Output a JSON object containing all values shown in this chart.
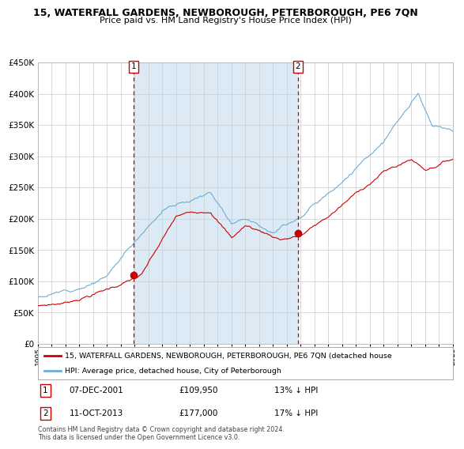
{
  "title": "15, WATERFALL GARDENS, NEWBOROUGH, PETERBOROUGH, PE6 7QN",
  "subtitle": "Price paid vs. HM Land Registry's House Price Index (HPI)",
  "legend_line1": "15, WATERFALL GARDENS, NEWBOROUGH, PETERBOROUGH, PE6 7QN (detached house",
  "legend_line2": "HPI: Average price, detached house, City of Peterborough",
  "annotation1": {
    "label": "1",
    "date": "07-DEC-2001",
    "price": "£109,950",
    "pct": "13% ↓ HPI"
  },
  "annotation2": {
    "label": "2",
    "date": "11-OCT-2013",
    "price": "£177,000",
    "pct": "17% ↓ HPI"
  },
  "footer": "Contains HM Land Registry data © Crown copyright and database right 2024.\nThis data is licensed under the Open Government Licence v3.0.",
  "ylim": [
    0,
    450000
  ],
  "yticks": [
    0,
    50000,
    100000,
    150000,
    200000,
    250000,
    300000,
    350000,
    400000,
    450000
  ],
  "hpi_color": "#6dadd1",
  "price_color": "#cc0000",
  "marker_color": "#cc0000",
  "vline_color": "#cc0000",
  "shade_color": "#dceaf5",
  "background_color": "#ffffff",
  "grid_color": "#cccccc",
  "sale1_year": 2001.93,
  "sale1_price": 109950,
  "sale2_year": 2013.78,
  "sale2_price": 177000,
  "xmin": 1995,
  "xmax": 2025
}
